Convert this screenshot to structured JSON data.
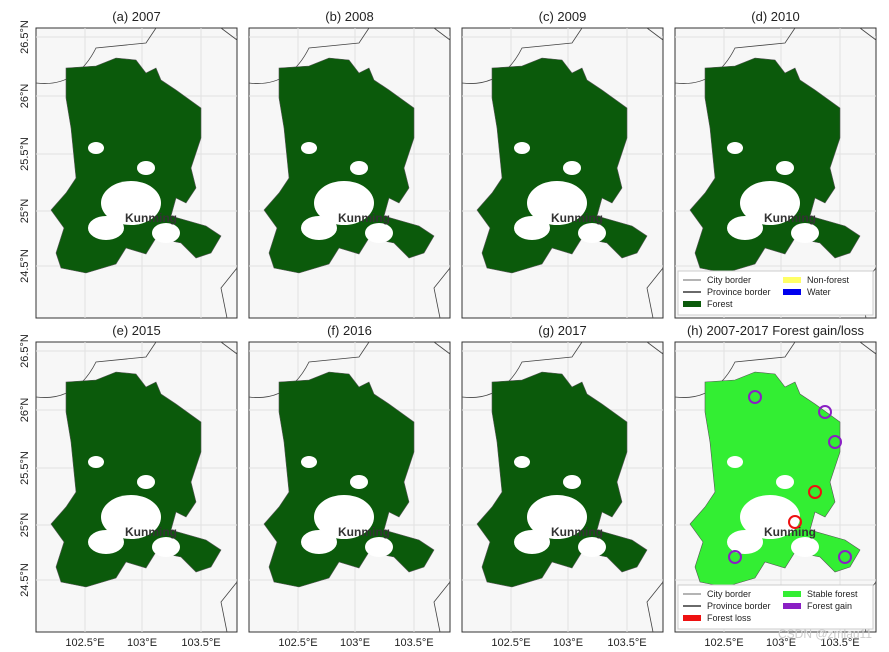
{
  "panels": [
    {
      "title": "(a) 2007"
    },
    {
      "title": "(b) 2008"
    },
    {
      "title": "(c) 2009"
    },
    {
      "title": "(d) 2010"
    },
    {
      "title": "(e) 2015"
    },
    {
      "title": "(f) 2016"
    },
    {
      "title": "(g) 2017"
    },
    {
      "title": "(h) 2007-2017 Forest gain/loss"
    }
  ],
  "city_label": "Kunming",
  "lat_labels": [
    "26.5°N",
    "26°N",
    "25.5°N",
    "25°N",
    "24.5°N"
  ],
  "lon_labels": [
    "102.5°E",
    "103°E",
    "103.5°E"
  ],
  "legend_forest": {
    "items": [
      {
        "label": "City border",
        "color": "#888888",
        "shape": "line"
      },
      {
        "label": "Non-forest",
        "color": "#ffff66",
        "shape": "box"
      },
      {
        "label": "Province border",
        "color": "#111111",
        "shape": "line"
      },
      {
        "label": "Water",
        "color": "#0000ee",
        "shape": "box"
      },
      {
        "label": "Forest",
        "color": "#0b5a0b",
        "shape": "box"
      }
    ]
  },
  "legend_change": {
    "items": [
      {
        "label": "City border",
        "color": "#888888",
        "shape": "line"
      },
      {
        "label": "Stable forest",
        "color": "#33ee33",
        "shape": "box"
      },
      {
        "label": "Province border",
        "color": "#111111",
        "shape": "line"
      },
      {
        "label": "Forest gain",
        "color": "#8a1fc4",
        "shape": "box"
      },
      {
        "label": "Forest loss",
        "color": "#ee1111",
        "shape": "box"
      }
    ]
  },
  "watermark": "CSDN @zmlau11"
}
